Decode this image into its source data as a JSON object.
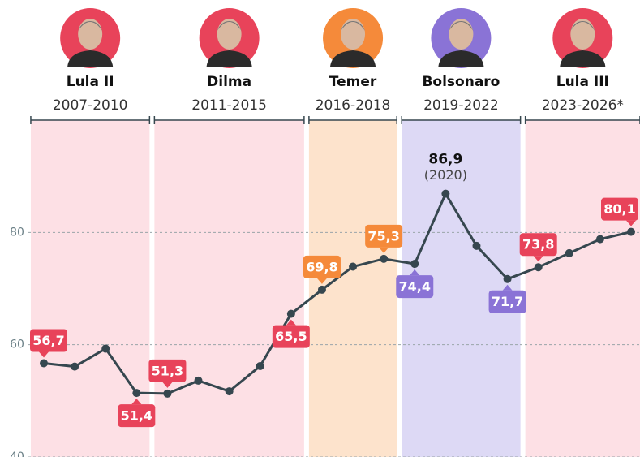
{
  "chart_data": {
    "type": "line",
    "periods": [
      {
        "name": "Lula II",
        "years": "2007-2010",
        "color": "#e8435a",
        "band_color": "#fde0e5"
      },
      {
        "name": "Dilma",
        "years": "2011-2015",
        "color": "#e8435a",
        "band_color": "#fde0e5"
      },
      {
        "name": "Temer",
        "years": "2016-2018",
        "color": "#f58a3a",
        "band_color": "#fde3cc"
      },
      {
        "name": "Bolsonaro",
        "years": "2019-2022",
        "color": "#8a73d6",
        "band_color": "#ddd9f5"
      },
      {
        "name": "Lula III",
        "years": "2023-2026*",
        "color": "#e8435a",
        "band_color": "#fde0e5"
      }
    ],
    "x": [
      2007,
      2008,
      2009,
      2010,
      2011,
      2012,
      2013,
      2014,
      2015,
      2016,
      2017,
      2018,
      2019,
      2020,
      2021,
      2022,
      2023,
      2024,
      2025,
      2026
    ],
    "values": [
      56.7,
      56.1,
      59.3,
      51.4,
      51.3,
      53.6,
      51.7,
      56.2,
      65.5,
      69.8,
      73.9,
      75.3,
      74.4,
      86.9,
      77.6,
      71.7,
      73.8,
      76.3,
      78.8,
      80.1
    ],
    "value_labels": [
      "56,7",
      null,
      null,
      "51,4",
      "51,3",
      null,
      null,
      null,
      "65,5",
      "69,8",
      null,
      "75,3",
      "74,4",
      "86,9",
      null,
      "71,7",
      "73,8",
      null,
      null,
      "80,1"
    ],
    "annotation": "(2020)",
    "color": "#36474f",
    "xlim": [
      2007,
      2026
    ],
    "ylim": [
      40,
      100
    ],
    "yticks": [
      40,
      60,
      80
    ],
    "grid": true
  }
}
